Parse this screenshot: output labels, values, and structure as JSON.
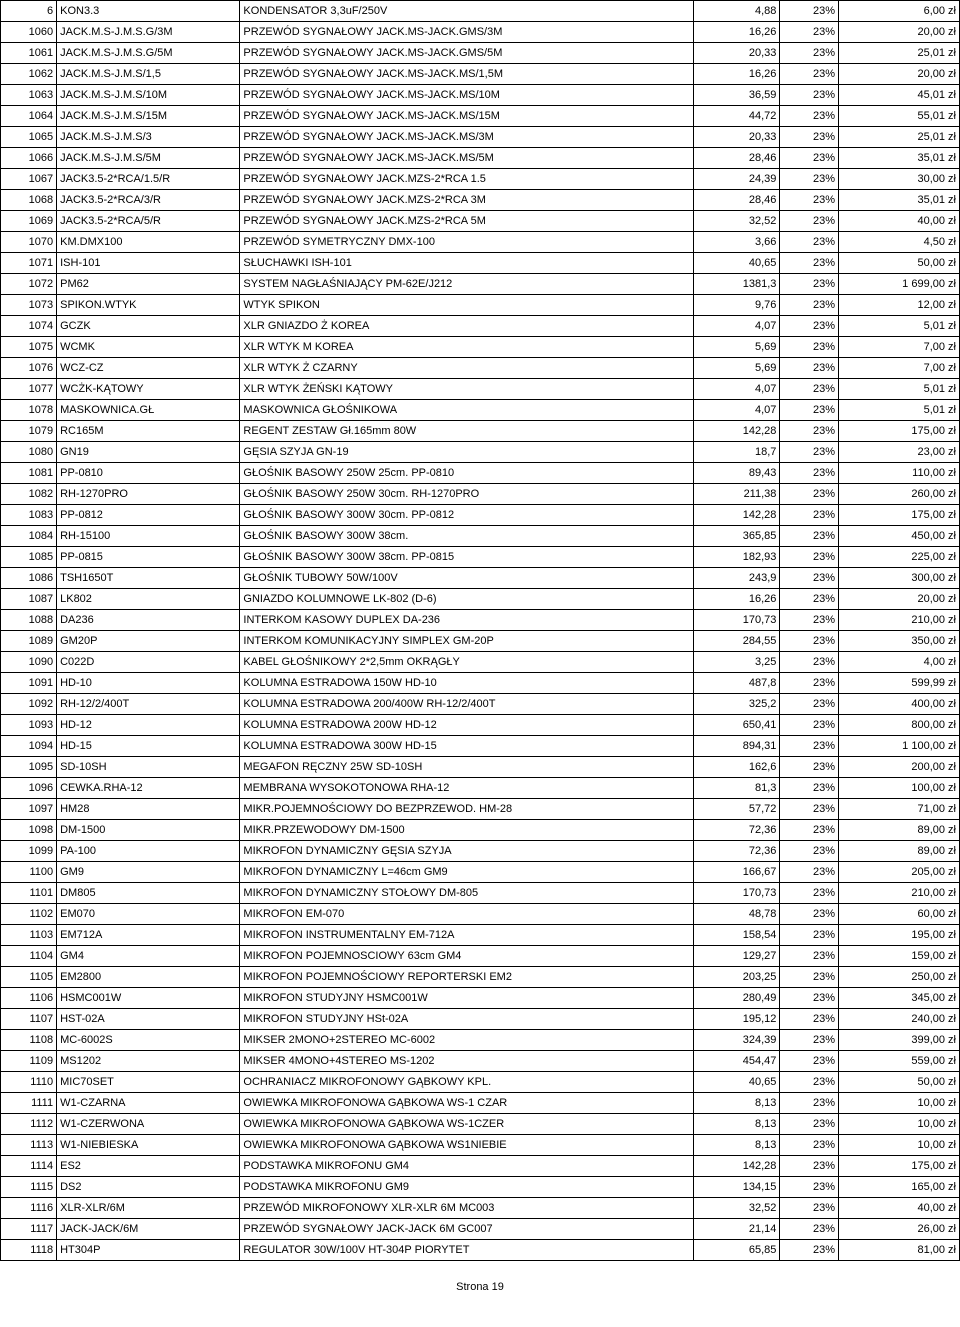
{
  "footer": "Strona 19",
  "columns": {
    "idx_width": 38,
    "code_width": 140,
    "desc_width": 357,
    "net_width": 62,
    "vat_width": 40,
    "gross_width": 90
  },
  "rows": [
    {
      "idx": "6",
      "code": "KON3.3",
      "desc": "KONDENSATOR 3,3uF/250V",
      "net": "4,88",
      "vat": "23%",
      "gross": "6,00 zł"
    },
    {
      "idx": "1060",
      "code": "JACK.M.S-J.M.S.G/3M",
      "desc": "PRZEWÓD SYGNAŁOWY JACK.MS-JACK.GMS/3M",
      "net": "16,26",
      "vat": "23%",
      "gross": "20,00 zł"
    },
    {
      "idx": "1061",
      "code": "JACK.M.S-J.M.S.G/5M",
      "desc": "PRZEWÓD SYGNAŁOWY JACK.MS-JACK.GMS/5M",
      "net": "20,33",
      "vat": "23%",
      "gross": "25,01 zł"
    },
    {
      "idx": "1062",
      "code": "JACK.M.S-J.M.S/1,5",
      "desc": "PRZEWÓD SYGNAŁOWY JACK.MS-JACK.MS/1,5M",
      "net": "16,26",
      "vat": "23%",
      "gross": "20,00 zł"
    },
    {
      "idx": "1063",
      "code": "JACK.M.S-J.M.S/10M",
      "desc": "PRZEWÓD SYGNAŁOWY JACK.MS-JACK.MS/10M",
      "net": "36,59",
      "vat": "23%",
      "gross": "45,01 zł"
    },
    {
      "idx": "1064",
      "code": "JACK.M.S-J.M.S/15M",
      "desc": "PRZEWÓD SYGNAŁOWY JACK.MS-JACK.MS/15M",
      "net": "44,72",
      "vat": "23%",
      "gross": "55,01 zł"
    },
    {
      "idx": "1065",
      "code": "JACK.M.S-J.M.S/3",
      "desc": "PRZEWÓD SYGNAŁOWY JACK.MS-JACK.MS/3M",
      "net": "20,33",
      "vat": "23%",
      "gross": "25,01 zł"
    },
    {
      "idx": "1066",
      "code": "JACK.M.S-J.M.S/5M",
      "desc": "PRZEWÓD SYGNAŁOWY JACK.MS-JACK.MS/5M",
      "net": "28,46",
      "vat": "23%",
      "gross": "35,01 zł"
    },
    {
      "idx": "1067",
      "code": "JACK3.5-2*RCA/1.5/R",
      "desc": "PRZEWÓD SYGNAŁOWY JACK.MZS-2*RCA 1.5",
      "net": "24,39",
      "vat": "23%",
      "gross": "30,00 zł"
    },
    {
      "idx": "1068",
      "code": "JACK3.5-2*RCA/3/R",
      "desc": "PRZEWÓD SYGNAŁOWY JACK.MZS-2*RCA 3M",
      "net": "28,46",
      "vat": "23%",
      "gross": "35,01 zł"
    },
    {
      "idx": "1069",
      "code": "JACK3.5-2*RCA/5/R",
      "desc": "PRZEWÓD SYGNAŁOWY JACK.MZS-2*RCA 5M",
      "net": "32,52",
      "vat": "23%",
      "gross": "40,00 zł"
    },
    {
      "idx": "1070",
      "code": "KM.DMX100",
      "desc": "PRZEWÓD SYMETRYCZNY DMX-100",
      "net": "3,66",
      "vat": "23%",
      "gross": "4,50 zł"
    },
    {
      "idx": "1071",
      "code": "ISH-101",
      "desc": "SŁUCHAWKI ISH-101",
      "net": "40,65",
      "vat": "23%",
      "gross": "50,00 zł"
    },
    {
      "idx": "1072",
      "code": "PM62",
      "desc": "SYSTEM NAGŁAŚNIAJĄCY PM-62E/J212",
      "net": "1381,3",
      "vat": "23%",
      "gross": "1 699,00 zł"
    },
    {
      "idx": "1073",
      "code": "SPIKON.WTYK",
      "desc": "WTYK SPIKON",
      "net": "9,76",
      "vat": "23%",
      "gross": "12,00 zł"
    },
    {
      "idx": "1074",
      "code": "GCZK",
      "desc": "XLR GNIAZDO Ż KOREA",
      "net": "4,07",
      "vat": "23%",
      "gross": "5,01 zł"
    },
    {
      "idx": "1075",
      "code": "WCMK",
      "desc": "XLR WTYK M KOREA",
      "net": "5,69",
      "vat": "23%",
      "gross": "7,00 zł"
    },
    {
      "idx": "1076",
      "code": "WCZ-CZ",
      "desc": "XLR WTYK Ż CZARNY",
      "net": "5,69",
      "vat": "23%",
      "gross": "7,00 zł"
    },
    {
      "idx": "1077",
      "code": "WCŻK-KĄTOWY",
      "desc": "XLR WTYK ŻEŃSKI KĄTOWY",
      "net": "4,07",
      "vat": "23%",
      "gross": "5,01 zł"
    },
    {
      "idx": "1078",
      "code": "MASKOWNICA.GŁ",
      "desc": "MASKOWNICA GŁOŚNIKOWA",
      "net": "4,07",
      "vat": "23%",
      "gross": "5,01 zł"
    },
    {
      "idx": "1079",
      "code": "RC165M",
      "desc": "REGENT ZESTAW Gł.165mm 80W",
      "net": "142,28",
      "vat": "23%",
      "gross": "175,00 zł"
    },
    {
      "idx": "1080",
      "code": "GN19",
      "desc": "GĘSIA SZYJA GN-19",
      "net": "18,7",
      "vat": "23%",
      "gross": "23,00 zł"
    },
    {
      "idx": "1081",
      "code": "PP-0810",
      "desc": "GŁOŚNIK BASOWY 250W 25cm. PP-0810",
      "net": "89,43",
      "vat": "23%",
      "gross": "110,00 zł"
    },
    {
      "idx": "1082",
      "code": "RH-1270PRO",
      "desc": "GŁOŚNIK BASOWY 250W 30cm. RH-1270PRO",
      "net": "211,38",
      "vat": "23%",
      "gross": "260,00 zł"
    },
    {
      "idx": "1083",
      "code": "PP-0812",
      "desc": "GŁOŚNIK BASOWY 300W 30cm. PP-0812",
      "net": "142,28",
      "vat": "23%",
      "gross": "175,00 zł"
    },
    {
      "idx": "1084",
      "code": "RH-15100",
      "desc": "GŁOŚNIK BASOWY 300W 38cm.",
      "net": "365,85",
      "vat": "23%",
      "gross": "450,00 zł"
    },
    {
      "idx": "1085",
      "code": "PP-0815",
      "desc": "GŁOŚNIK BASOWY 300W 38cm. PP-0815",
      "net": "182,93",
      "vat": "23%",
      "gross": "225,00 zł"
    },
    {
      "idx": "1086",
      "code": "TSH1650T",
      "desc": "GŁOŚNIK TUBOWY 50W/100V",
      "net": "243,9",
      "vat": "23%",
      "gross": "300,00 zł"
    },
    {
      "idx": "1087",
      "code": "LK802",
      "desc": "GNIAZDO KOLUMNOWE LK-802 (D-6)",
      "net": "16,26",
      "vat": "23%",
      "gross": "20,00 zł"
    },
    {
      "idx": "1088",
      "code": "DA236",
      "desc": "INTERKOM KASOWY DUPLEX DA-236",
      "net": "170,73",
      "vat": "23%",
      "gross": "210,00 zł"
    },
    {
      "idx": "1089",
      "code": "GM20P",
      "desc": "INTERKOM KOMUNIKACYJNY SIMPLEX GM-20P",
      "net": "284,55",
      "vat": "23%",
      "gross": "350,00 zł"
    },
    {
      "idx": "1090",
      "code": "C022D",
      "desc": "KABEL GŁOŚNIKOWY 2*2,5mm OKRĄGŁY",
      "net": "3,25",
      "vat": "23%",
      "gross": "4,00 zł"
    },
    {
      "idx": "1091",
      "code": "HD-10",
      "desc": "KOLUMNA ESTRADOWA 150W HD-10",
      "net": "487,8",
      "vat": "23%",
      "gross": "599,99 zł"
    },
    {
      "idx": "1092",
      "code": "RH-12/2/400T",
      "desc": "KOLUMNA ESTRADOWA 200/400W RH-12/2/400T",
      "net": "325,2",
      "vat": "23%",
      "gross": "400,00 zł"
    },
    {
      "idx": "1093",
      "code": "HD-12",
      "desc": "KOLUMNA ESTRADOWA 200W HD-12",
      "net": "650,41",
      "vat": "23%",
      "gross": "800,00 zł"
    },
    {
      "idx": "1094",
      "code": "HD-15",
      "desc": "KOLUMNA ESTRADOWA 300W HD-15",
      "net": "894,31",
      "vat": "23%",
      "gross": "1 100,00 zł"
    },
    {
      "idx": "1095",
      "code": "SD-10SH",
      "desc": "MEGAFON RĘCZNY 25W SD-10SH",
      "net": "162,6",
      "vat": "23%",
      "gross": "200,00 zł"
    },
    {
      "idx": "1096",
      "code": "CEWKA.RHA-12",
      "desc": "MEMBRANA WYSOKOTONOWA RHA-12",
      "net": "81,3",
      "vat": "23%",
      "gross": "100,00 zł"
    },
    {
      "idx": "1097",
      "code": "HM28",
      "desc": "MIKR.POJEMNOŚCIOWY DO BEZPRZEWOD. HM-28",
      "net": "57,72",
      "vat": "23%",
      "gross": "71,00 zł"
    },
    {
      "idx": "1098",
      "code": "DM-1500",
      "desc": "MIKR.PRZEWODOWY DM-1500",
      "net": "72,36",
      "vat": "23%",
      "gross": "89,00 zł"
    },
    {
      "idx": "1099",
      "code": "PA-100",
      "desc": "MIKROFON DYNAMICZNY GĘSIA SZYJA",
      "net": "72,36",
      "vat": "23%",
      "gross": "89,00 zł"
    },
    {
      "idx": "1100",
      "code": "GM9",
      "desc": "MIKROFON DYNAMICZNY L=46cm GM9",
      "net": "166,67",
      "vat": "23%",
      "gross": "205,00 zł"
    },
    {
      "idx": "1101",
      "code": "DM805",
      "desc": "MIKROFON DYNAMICZNY STOŁOWY DM-805",
      "net": "170,73",
      "vat": "23%",
      "gross": "210,00 zł"
    },
    {
      "idx": "1102",
      "code": "EM070",
      "desc": "MIKROFON EM-070",
      "net": "48,78",
      "vat": "23%",
      "gross": "60,00 zł"
    },
    {
      "idx": "1103",
      "code": "EM712A",
      "desc": "MIKROFON INSTRUMENTALNY EM-712A",
      "net": "158,54",
      "vat": "23%",
      "gross": "195,00 zł"
    },
    {
      "idx": "1104",
      "code": "GM4",
      "desc": "MIKROFON POJEMNOSCIOWY 63cm GM4",
      "net": "129,27",
      "vat": "23%",
      "gross": "159,00 zł"
    },
    {
      "idx": "1105",
      "code": "EM2800",
      "desc": "MIKROFON POJEMNOŚCIOWY REPORTERSKI EM2",
      "net": "203,25",
      "vat": "23%",
      "gross": "250,00 zł"
    },
    {
      "idx": "1106",
      "code": "HSMC001W",
      "desc": "MIKROFON STUDYJNY HSMC001W",
      "net": "280,49",
      "vat": "23%",
      "gross": "345,00 zł"
    },
    {
      "idx": "1107",
      "code": "HST-02A",
      "desc": "MIKROFON STUDYJNY HSt-02A",
      "net": "195,12",
      "vat": "23%",
      "gross": "240,00 zł"
    },
    {
      "idx": "1108",
      "code": "MC-6002S",
      "desc": "MIKSER 2MONO+2STEREO MC-6002",
      "net": "324,39",
      "vat": "23%",
      "gross": "399,00 zł"
    },
    {
      "idx": "1109",
      "code": "MS1202",
      "desc": "MIKSER 4MONO+4STEREO MS-1202",
      "net": "454,47",
      "vat": "23%",
      "gross": "559,00 zł"
    },
    {
      "idx": "1110",
      "code": "MIC70SET",
      "desc": "OCHRANIACZ MIKROFONOWY GĄBKOWY KPL.",
      "net": "40,65",
      "vat": "23%",
      "gross": "50,00 zł"
    },
    {
      "idx": "1111",
      "code": "W1-CZARNA",
      "desc": "OWIEWKA MIKROFONOWA GĄBKOWA WS-1 CZAR",
      "net": "8,13",
      "vat": "23%",
      "gross": "10,00 zł"
    },
    {
      "idx": "1112",
      "code": "W1-CZERWONA",
      "desc": "OWIEWKA MIKROFONOWA GĄBKOWA WS-1CZER",
      "net": "8,13",
      "vat": "23%",
      "gross": "10,00 zł"
    },
    {
      "idx": "1113",
      "code": "W1-NIEBIESKA",
      "desc": "OWIEWKA MIKROFONOWA GĄBKOWA WS1NIEBIE",
      "net": "8,13",
      "vat": "23%",
      "gross": "10,00 zł"
    },
    {
      "idx": "1114",
      "code": "ES2",
      "desc": "PODSTAWKA MIKROFONU GM4",
      "net": "142,28",
      "vat": "23%",
      "gross": "175,00 zł"
    },
    {
      "idx": "1115",
      "code": "DS2",
      "desc": "PODSTAWKA MIKROFONU GM9",
      "net": "134,15",
      "vat": "23%",
      "gross": "165,00 zł"
    },
    {
      "idx": "1116",
      "code": "XLR-XLR/6M",
      "desc": "PRZEWÓD MIKROFONOWY XLR-XLR 6M MC003",
      "net": "32,52",
      "vat": "23%",
      "gross": "40,00 zł"
    },
    {
      "idx": "1117",
      "code": "JACK-JACK/6M",
      "desc": "PRZEWÓD SYGNAŁOWY JACK-JACK 6M GC007",
      "net": "21,14",
      "vat": "23%",
      "gross": "26,00 zł"
    },
    {
      "idx": "1118",
      "code": "HT304P",
      "desc": "REGULATOR 30W/100V HT-304P PIORYTET",
      "net": "65,85",
      "vat": "23%",
      "gross": "81,00 zł"
    }
  ]
}
